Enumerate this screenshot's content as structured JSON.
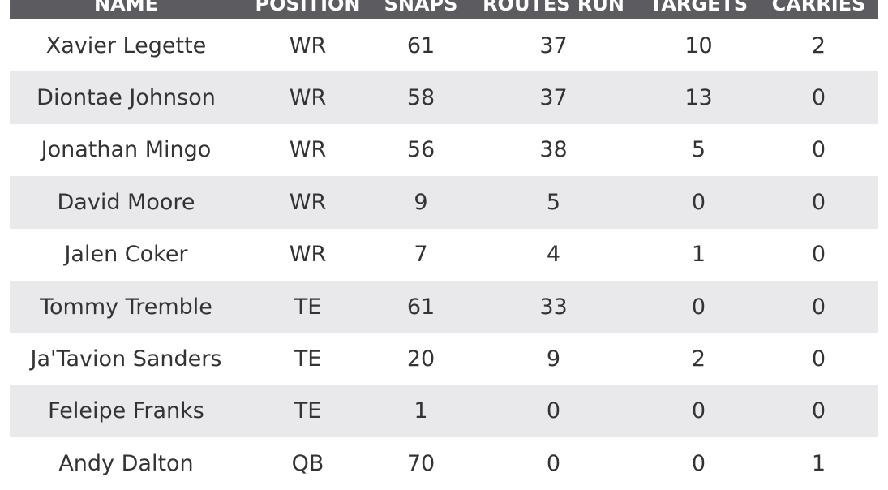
{
  "table": {
    "headers": [
      "NAME",
      "POSITION",
      "SNAPS",
      "ROUTES RUN",
      "TARGETS",
      "CARRIES"
    ],
    "rows": [
      [
        "Xavier Legette",
        "WR",
        "61",
        "37",
        "10",
        "2"
      ],
      [
        "Diontae Johnson",
        "WR",
        "58",
        "37",
        "13",
        "0"
      ],
      [
        "Jonathan Mingo",
        "WR",
        "56",
        "38",
        "5",
        "0"
      ],
      [
        "David Moore",
        "WR",
        "9",
        "5",
        "0",
        "0"
      ],
      [
        "Jalen Coker",
        "WR",
        "7",
        "4",
        "1",
        "0"
      ],
      [
        "Tommy Tremble",
        "TE",
        "61",
        "33",
        "0",
        "0"
      ],
      [
        "Ja'Tavion Sanders",
        "TE",
        "20",
        "9",
        "2",
        "0"
      ],
      [
        "Feleipe Franks",
        "TE",
        "1",
        "0",
        "0",
        "0"
      ],
      [
        "Andy Dalton",
        "QB",
        "70",
        "0",
        "0",
        "1"
      ]
    ]
  },
  "colors": {
    "header_bg": "#5b5b60",
    "row_alt_bg": "#e9e9ec",
    "text": "#333333"
  }
}
